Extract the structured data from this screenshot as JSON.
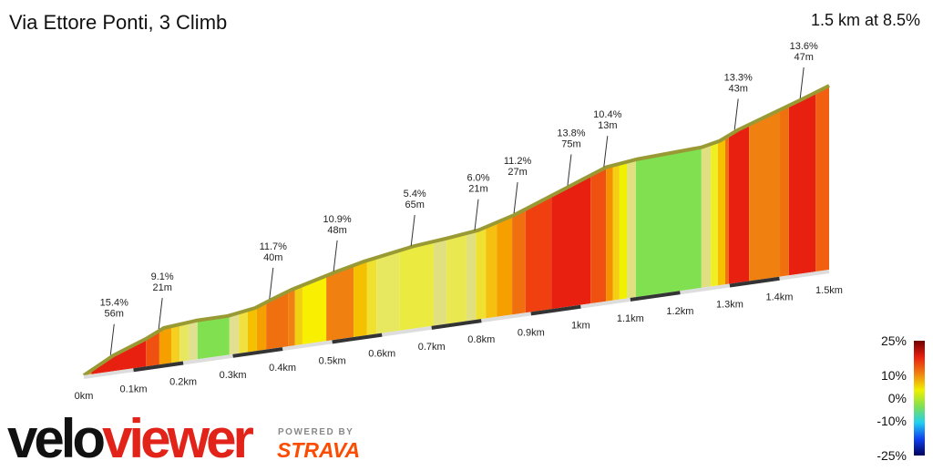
{
  "chart_data": {
    "type": "climb-profile",
    "title": "Via Ettore Ponti, 3 Climb",
    "summary": "1.5 km at 8.5%",
    "xlim": [
      0,
      1.5
    ],
    "xticks": [
      {
        "value": 0,
        "label": "0km"
      },
      {
        "value": 0.1,
        "label": "0.1km"
      },
      {
        "value": 0.2,
        "label": "0.2km"
      },
      {
        "value": 0.3,
        "label": "0.3km"
      },
      {
        "value": 0.4,
        "label": "0.4km"
      },
      {
        "value": 0.5,
        "label": "0.5km"
      },
      {
        "value": 0.6,
        "label": "0.6km"
      },
      {
        "value": 0.7,
        "label": "0.7km"
      },
      {
        "value": 0.8,
        "label": "0.8km"
      },
      {
        "value": 0.9,
        "label": "0.9km"
      },
      {
        "value": 1,
        "label": "1km"
      },
      {
        "value": 1.1,
        "label": "1.1km"
      },
      {
        "value": 1.2,
        "label": "1.2km"
      },
      {
        "value": 1.3,
        "label": "1.3km"
      },
      {
        "value": 1.4,
        "label": "1.4km"
      },
      {
        "value": 1.5,
        "label": "1.5km"
      }
    ],
    "profile": {
      "x": [
        0,
        0.06,
        0.125,
        0.161,
        0.226,
        0.29,
        0.345,
        0.381,
        0.418,
        0.51,
        0.565,
        0.666,
        0.73,
        0.794,
        0.867,
        0.977,
        1.051,
        1.115,
        1.243,
        1.28,
        1.317,
        1.445,
        1.5
      ],
      "elevation": [
        0,
        10.7,
        18.8,
        24.4,
        26.3,
        26.4,
        29.2,
        33.7,
        38.1,
        46.1,
        50.3,
        55.9,
        57.9,
        60.4,
        67.4,
        81.4,
        90.8,
        93.3,
        95.2,
        97.8,
        103.5,
        118,
        124.7
      ],
      "edge_color": "#9a9a35"
    },
    "segments": {
      "start": [
        0,
        0.015,
        0.125,
        0.152,
        0.176,
        0.193,
        0.211,
        0.229,
        0.293,
        0.312,
        0.33,
        0.348,
        0.367,
        0.411,
        0.425,
        0.44,
        0.488,
        0.543,
        0.57,
        0.589,
        0.635,
        0.704,
        0.73,
        0.77,
        0.789,
        0.809,
        0.831,
        0.862,
        0.889,
        0.941,
        1.02,
        1.051,
        1.065,
        1.078,
        1.093,
        1.111,
        1.243,
        1.262,
        1.276,
        1.291,
        1.298,
        1.339,
        1.401,
        1.419,
        1.473
      ],
      "colors": [
        "#f4a020",
        "#e8200f",
        "#f05010",
        "#f5a000",
        "#f5d020",
        "#e8e860",
        "#e0e090",
        "#80e050",
        "#e0e090",
        "#f0e040",
        "#f5c000",
        "#f5a000",
        "#f07010",
        "#f08010",
        "#f0d010",
        "#f8f000",
        "#f08010",
        "#f5c000",
        "#f0e030",
        "#e8e860",
        "#eaea40",
        "#e0e080",
        "#eae850",
        "#e0e080",
        "#f0e030",
        "#f5c010",
        "#f5a000",
        "#f07010",
        "#f04010",
        "#e82010",
        "#f05010",
        "#f59000",
        "#f5d010",
        "#f0f000",
        "#e0e080",
        "#80e050",
        "#e0e080",
        "#f0f020",
        "#f5c000",
        "#f07010",
        "#e82010",
        "#f08010",
        "#f07010",
        "#e82010",
        "#f06010"
      ]
    },
    "annotations": [
      {
        "x": 0.061,
        "grade": "15.4%",
        "length": "56m"
      },
      {
        "x": 0.158,
        "grade": "9.1%",
        "length": "21m"
      },
      {
        "x": 0.381,
        "grade": "11.7%",
        "length": "40m"
      },
      {
        "x": 0.51,
        "grade": "10.9%",
        "length": "48m"
      },
      {
        "x": 0.666,
        "grade": "5.4%",
        "length": "65m"
      },
      {
        "x": 0.794,
        "grade": "6.0%",
        "length": "21m"
      },
      {
        "x": 0.873,
        "grade": "11.2%",
        "length": "27m"
      },
      {
        "x": 0.981,
        "grade": "13.8%",
        "length": "75m"
      },
      {
        "x": 1.054,
        "grade": "10.4%",
        "length": "13m"
      },
      {
        "x": 1.317,
        "grade": "13.3%",
        "length": "43m"
      },
      {
        "x": 1.449,
        "grade": "13.6%",
        "length": "47m"
      }
    ],
    "legend": {
      "lim": [
        -25,
        25
      ],
      "ticks": [
        {
          "value": 25,
          "label": "25%"
        },
        {
          "value": 10,
          "label": "10%"
        },
        {
          "value": 0,
          "label": "0%"
        },
        {
          "value": -10,
          "label": "-10%"
        },
        {
          "value": -25,
          "label": "-25%"
        }
      ],
      "colors": [
        "#00005a",
        "#1040f0",
        "#20d0f0",
        "#80e050",
        "#f0f000",
        "#f08010",
        "#e82010",
        "#700000"
      ]
    },
    "logo": {
      "first": "velo",
      "second": "viewer",
      "first_color": "#111111",
      "second_color": "#e2231a"
    },
    "powered_by": "POWERED BY",
    "strava": "STRAVA",
    "strava_color": "#fc4c02"
  }
}
